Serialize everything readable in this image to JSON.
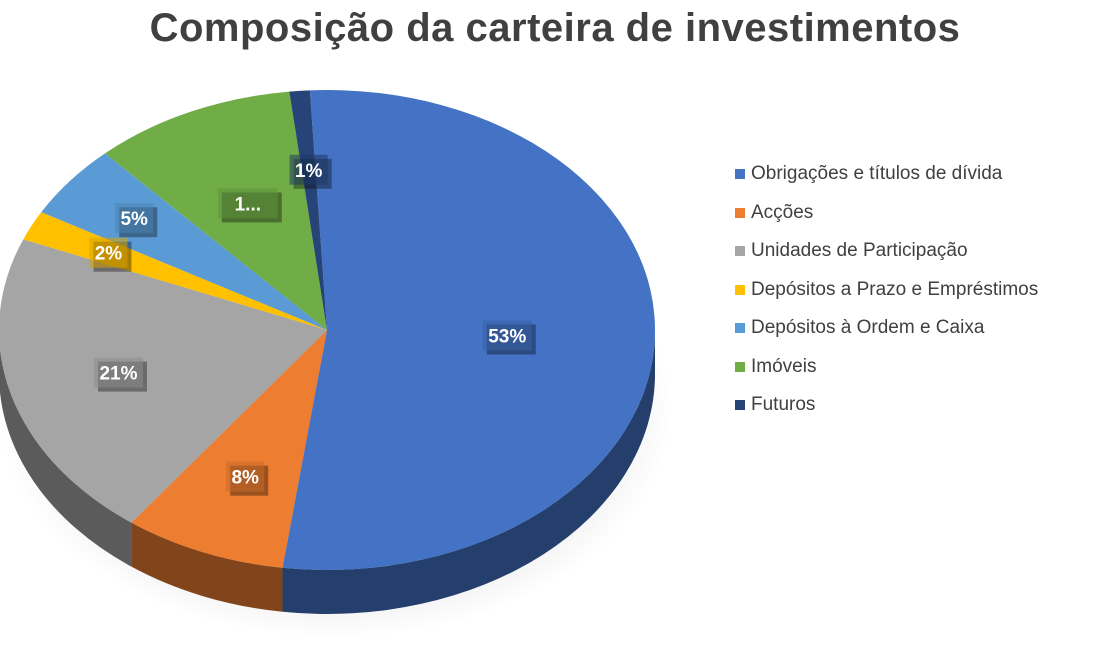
{
  "chart_data": {
    "type": "pie",
    "title": "Composição da carteira de investimentos",
    "slices": [
      {
        "name": "Obrigações e títulos de dívida",
        "value": 53,
        "label": "53%",
        "color": "#4472C4"
      },
      {
        "name": "Acções",
        "value": 8,
        "label": "8%",
        "color": "#ED7D31"
      },
      {
        "name": "Unidades de Participação",
        "value": 21,
        "label": "21%",
        "color": "#A5A5A5"
      },
      {
        "name": "Depósitos a Prazo e Empréstimos",
        "value": 2,
        "label": "2%",
        "color": "#FFC000"
      },
      {
        "name": "Depósitos à Ordem e Caixa",
        "value": 5,
        "label": "5%",
        "color": "#5B9BD5"
      },
      {
        "name": "Imóveis",
        "value": 10,
        "label": "1...",
        "color": "#70AD47"
      },
      {
        "name": "Futuros",
        "value": 1,
        "label": "1%",
        "color": "#264478"
      }
    ],
    "legend_position": "right",
    "style": "3d"
  }
}
